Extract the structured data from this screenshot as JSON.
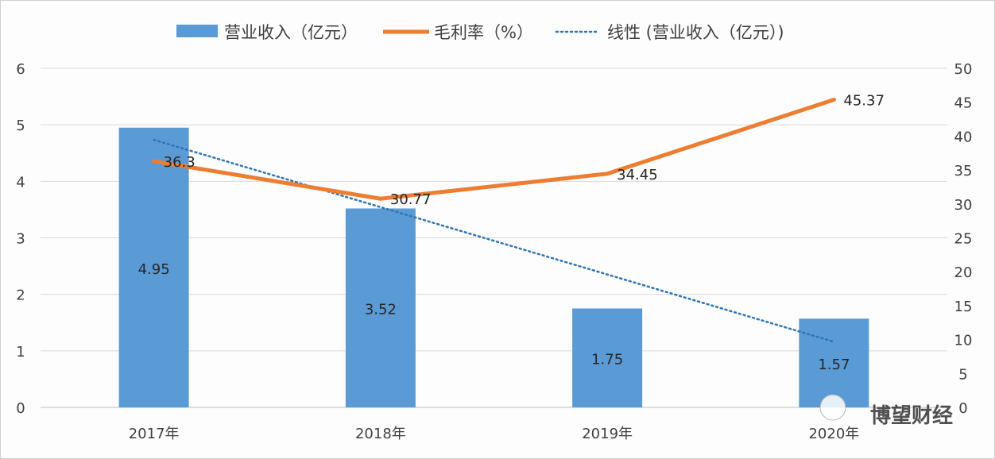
{
  "chart_data": {
    "type": "bar+line",
    "categories": [
      "2017年",
      "2018年",
      "2019年",
      "2020年"
    ],
    "series": [
      {
        "name": "营业收入（亿元）",
        "type": "bar",
        "axis": "left",
        "values": [
          4.95,
          3.52,
          1.75,
          1.57
        ],
        "labels": [
          "4.95",
          "3.52",
          "1.75",
          "1.57"
        ],
        "color": "#5b9bd5"
      },
      {
        "name": "毛利率（%）",
        "type": "line",
        "axis": "right",
        "values": [
          36.3,
          30.77,
          34.45,
          45.37
        ],
        "labels": [
          "36.3",
          "30.77",
          "34.45",
          "45.37"
        ],
        "color": "#ed7d31"
      },
      {
        "name": "线性 (营业收入（亿元）)",
        "type": "trendline-linear",
        "axis": "left",
        "of": "营业收入（亿元）",
        "color": "#2e75b6"
      }
    ],
    "left_axis": {
      "range": [
        0,
        6
      ],
      "ticks": [
        "0",
        "1",
        "2",
        "3",
        "4",
        "5",
        "6"
      ]
    },
    "right_axis": {
      "range": [
        0,
        50
      ],
      "ticks": [
        "0",
        "5",
        "10",
        "15",
        "20",
        "25",
        "30",
        "35",
        "40",
        "45",
        "50"
      ]
    },
    "grid": true,
    "legend_placement": "top"
  },
  "watermark": "博望财经"
}
